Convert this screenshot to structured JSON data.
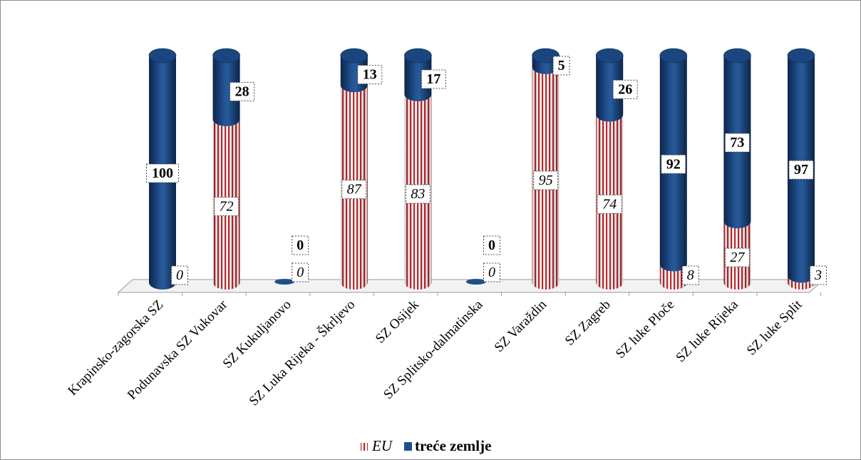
{
  "chart_data": {
    "type": "bar",
    "stacked": true,
    "percent": true,
    "categories": [
      "Krapinsko-zagorska SZ",
      "Podunavska SZ Vukovar",
      "SZ Kukuljanovo",
      "SZ Luka Rijeka - Škrljevo",
      "SZ Osijek",
      "SZ Splitsko-dalmatinska",
      "SZ Varaždin",
      "SZ Zagreb",
      "SZ luke Ploče",
      "SZ luke Rijeka",
      "SZ luke Split"
    ],
    "series": [
      {
        "name": "EU",
        "color": "#c0282d",
        "pattern": "vertical-stripes",
        "values": [
          0,
          72,
          0,
          87,
          83,
          0,
          95,
          74,
          8,
          27,
          3
        ]
      },
      {
        "name": "treće zemlje",
        "color": "#1f4e8c",
        "values": [
          100,
          28,
          0,
          13,
          17,
          0,
          5,
          26,
          92,
          73,
          97
        ]
      }
    ],
    "ylim": [
      0,
      100
    ],
    "grid": false,
    "legend_position": "bottom"
  }
}
